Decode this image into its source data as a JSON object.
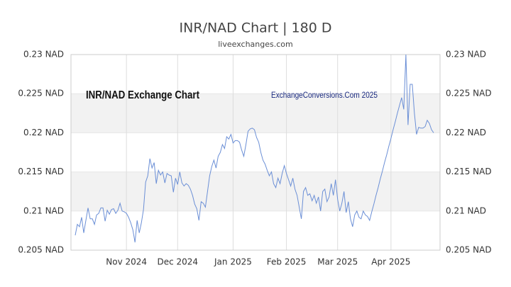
{
  "chart_data": {
    "type": "line",
    "title": "INR/NAD Chart | 180 D",
    "subtitle": "liveexchanges.com",
    "annotations": [
      "INR/NAD Exchange Chart",
      "ExchangeConversions.Com 2025"
    ],
    "xlim": [
      -2,
      171
    ],
    "xticks": [
      {
        "value": 24,
        "label": "Nov 2024"
      },
      {
        "value": 48,
        "label": "Dec 2024"
      },
      {
        "value": 74,
        "label": "Jan 2025"
      },
      {
        "value": 99,
        "label": "Feb 2025"
      },
      {
        "value": 123,
        "label": "Mar 2025"
      },
      {
        "value": 148,
        "label": "Apr 2025"
      }
    ],
    "ylim": [
      0.205,
      0.23
    ],
    "yticks": [
      {
        "value": 0.205,
        "label": "0.205 NAD"
      },
      {
        "value": 0.21,
        "label": "0.21 NAD"
      },
      {
        "value": 0.215,
        "label": "0.215 NAD"
      },
      {
        "value": 0.22,
        "label": "0.22 NAD"
      },
      {
        "value": 0.225,
        "label": "0.225 NAD"
      },
      {
        "value": 0.23,
        "label": "0.23 NAD"
      }
    ],
    "right_axis": true,
    "bands": true,
    "series": [
      {
        "color": "#6b8fd6",
        "values": [
          0.2069,
          0.2083,
          0.208,
          0.2092,
          0.2072,
          0.2088,
          0.2104,
          0.209,
          0.209,
          0.2083,
          0.2095,
          0.2097,
          0.2104,
          0.2104,
          0.2087,
          0.2101,
          0.2096,
          0.2102,
          0.2103,
          0.2097,
          0.2101,
          0.211,
          0.21,
          0.2099,
          0.2097,
          0.2092,
          0.2085,
          0.2076,
          0.206,
          0.2088,
          0.2072,
          0.2085,
          0.2102,
          0.2137,
          0.2145,
          0.2167,
          0.2155,
          0.2162,
          0.2135,
          0.2152,
          0.2146,
          0.215,
          0.2136,
          0.2148,
          0.2146,
          0.2145,
          0.2124,
          0.2142,
          0.2134,
          0.215,
          0.2136,
          0.2132,
          0.2135,
          0.2133,
          0.2128,
          0.212,
          0.2109,
          0.2103,
          0.2088,
          0.2112,
          0.211,
          0.2105,
          0.2125,
          0.2145,
          0.2157,
          0.2165,
          0.2155,
          0.217,
          0.2175,
          0.2185,
          0.218,
          0.2195,
          0.2192,
          0.2198,
          0.2187,
          0.219,
          0.219,
          0.2188,
          0.2178,
          0.217,
          0.2185,
          0.2202,
          0.2205,
          0.2206,
          0.2204,
          0.2194,
          0.2188,
          0.2175,
          0.2165,
          0.216,
          0.2152,
          0.2145,
          0.215,
          0.2135,
          0.213,
          0.2142,
          0.2135,
          0.2148,
          0.2158,
          0.2148,
          0.214,
          0.2132,
          0.2142,
          0.2128,
          0.212,
          0.2105,
          0.209,
          0.2125,
          0.213,
          0.212,
          0.2122,
          0.2113,
          0.212,
          0.211,
          0.2118,
          0.21,
          0.2125,
          0.2128,
          0.2112,
          0.2118,
          0.2135,
          0.212,
          0.214,
          0.2115,
          0.21,
          0.211,
          0.2125,
          0.2098,
          0.2112,
          0.209,
          0.208,
          0.2095,
          0.21,
          0.2092,
          0.209,
          0.21,
          0.2095,
          0.2093,
          0.2088,
          0.2099,
          0.2109,
          0.212,
          0.213,
          0.2141,
          0.2151,
          0.2162,
          0.2172,
          0.2183,
          0.2193,
          0.2204,
          0.2214,
          0.2225,
          0.2235,
          0.2245,
          0.223,
          0.23,
          0.221,
          0.2262,
          0.2262,
          0.2225,
          0.2198,
          0.2207,
          0.2206,
          0.2206,
          0.2208,
          0.2216,
          0.2212,
          0.2204,
          0.22
        ]
      }
    ]
  }
}
